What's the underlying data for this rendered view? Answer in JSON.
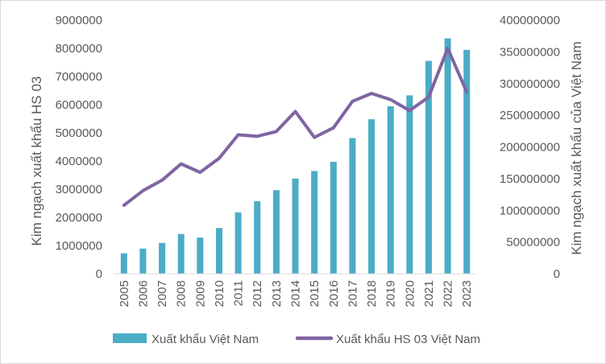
{
  "chart_data": {
    "type": "bar+line",
    "title": "",
    "categories": [
      "2005",
      "2006",
      "2007",
      "2008",
      "2009",
      "2010",
      "2011",
      "2012",
      "2013",
      "2014",
      "2015",
      "2016",
      "2017",
      "2018",
      "2019",
      "2020",
      "2021",
      "2022",
      "2023"
    ],
    "series": [
      {
        "name": "Xuất khẩu Việt Nam",
        "type": "bar",
        "axis": "secondary",
        "color": "#4bacc6",
        "values": [
          32400000,
          39800000,
          48600000,
          62700000,
          57100000,
          72200000,
          96900000,
          114500000,
          132000000,
          150200000,
          162000000,
          176600000,
          214000000,
          243700000,
          264200000,
          281400000,
          335700000,
          371300000,
          353000000
        ]
      },
      {
        "name": "Xuất khẩu HS 03 Việt Nam",
        "type": "line",
        "axis": "primary",
        "color": "#8064a2",
        "values": [
          2430000,
          2950000,
          3320000,
          3900000,
          3600000,
          4100000,
          4930000,
          4880000,
          5050000,
          5760000,
          4840000,
          5180000,
          6120000,
          6400000,
          6180000,
          5790000,
          6270000,
          8000000,
          6450000
        ]
      }
    ],
    "y_primary": {
      "label": "Kim ngạch xuất khẩu HS 03",
      "lim": [
        0,
        9000000
      ],
      "ticks": [
        "0",
        "1000000",
        "2000000",
        "3000000",
        "4000000",
        "5000000",
        "6000000",
        "7000000",
        "8000000",
        "9000000"
      ]
    },
    "y_secondary": {
      "label": "Kim ngạch xuất khẩu của Việt Nam",
      "lim": [
        0,
        400000000
      ],
      "ticks": [
        "0",
        "50000000",
        "100000000",
        "150000000",
        "200000000",
        "250000000",
        "300000000",
        "350000000",
        "400000000"
      ]
    },
    "grid": false,
    "legend_position": "bottom"
  }
}
